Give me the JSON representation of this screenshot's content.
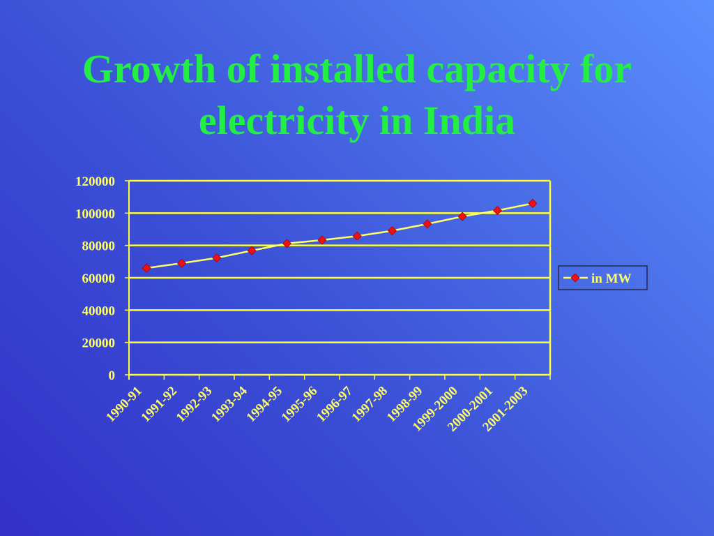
{
  "slide": {
    "title_line1": "Growth of installed capacity for",
    "title_line2": "electricity in India"
  },
  "chart_data": {
    "type": "line",
    "title": "",
    "xlabel": "",
    "ylabel": "",
    "categories": [
      "1990-91",
      "1991-92",
      "1992-93",
      "1993-94",
      "1994-95",
      "1995-96",
      "1996-97",
      "1997-98",
      "1998-99",
      "1999-2000",
      "2000-2001",
      "2001-2003"
    ],
    "series": [
      {
        "name": "in MW",
        "values": [
          66000,
          69000,
          72300,
          76800,
          81200,
          83300,
          85800,
          89100,
          93300,
          97900,
          101600,
          106000
        ]
      }
    ],
    "ylim": [
      0,
      120000
    ],
    "yticks": [
      "0",
      "20000",
      "40000",
      "60000",
      "80000",
      "100000",
      "120000"
    ],
    "grid": true,
    "legend_position": "right",
    "colors": {
      "line": "#ffff66",
      "marker": "#ee1111",
      "gridlines": "#ffff33",
      "text": "#ffff66",
      "legend_border": "#1a1a1a"
    }
  }
}
